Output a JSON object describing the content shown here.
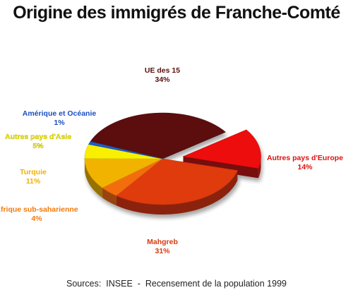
{
  "chart_data": {
    "type": "pie",
    "title": "Origine des immigrés de Franche-Comté",
    "slices": [
      {
        "name": "UE des 15",
        "value": 34,
        "label": "34%",
        "color": "#5c0d0d",
        "label_color": "#5c0d0d"
      },
      {
        "name": "Autres pays d'Europe",
        "value": 14,
        "label": "14%",
        "color": "#ee1111",
        "label_color": "#dd1111",
        "exploded": true
      },
      {
        "name": "Mahgreb",
        "value": 31,
        "label": "31%",
        "color": "#e03a0c",
        "label_color": "#d63a0c"
      },
      {
        "name": "Afrique sub-saharienne",
        "value": 4,
        "label": "4%",
        "color": "#f36d0c",
        "label_color": "#f27a0c"
      },
      {
        "name": "Turquie",
        "value": 11,
        "label": "11%",
        "color": "#f2b300",
        "label_color": "#f0b000"
      },
      {
        "name": "Autres pays d'Asie",
        "value": 5,
        "label": "5%",
        "color": "#f8f000",
        "label_color": "#eee800"
      },
      {
        "name": "Amérique et Océanie",
        "value": 1,
        "label": "1%",
        "color": "#1a5ec8",
        "label_color": "#1a4ebf"
      }
    ],
    "legend": "none",
    "labels": "outside"
  },
  "source": "Sources:  INSEE  -  Recensement de la population 1999"
}
